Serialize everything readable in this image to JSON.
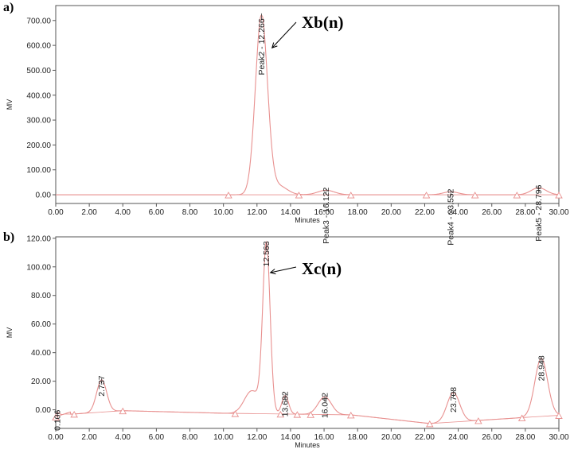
{
  "chart_data": [
    {
      "type": "line",
      "panel_label": "a)",
      "callout": "Xb(n)",
      "callout_target_x": 12.9,
      "callout_target_y": 590,
      "xlabel": "Minutes",
      "ylabel": "MV",
      "xlim": [
        0,
        30
      ],
      "ylim": [
        -35,
        760
      ],
      "x_ticks": [
        "0.00",
        "2.00",
        "4.00",
        "6.00",
        "8.00",
        "10.00",
        "12.00",
        "14.00",
        "16.00",
        "18.00",
        "20.00",
        "22.00",
        "24.00",
        "26.00",
        "28.00",
        "30.00"
      ],
      "y_ticks": [
        "0.00",
        "100.00",
        "200.00",
        "300.00",
        "400.00",
        "500.00",
        "600.00",
        "700.00"
      ],
      "grid": false,
      "peaks": [
        {
          "label": "Peak2 - 12.266",
          "x": 12.266,
          "y": 722,
          "label_y": 708,
          "width": 0.36
        },
        {
          "label": "Peak3 - 16.122",
          "x": 16.122,
          "y": 18,
          "label_y": 30,
          "width": 0.5
        },
        {
          "label": "Peak4 - 23.552",
          "x": 23.552,
          "y": 12,
          "label_y": 24,
          "width": 0.45
        },
        {
          "label": "Peak5 - 28.796",
          "x": 28.796,
          "y": 28,
          "label_y": 40,
          "width": 0.45
        }
      ],
      "markers": [
        10.3,
        14.5,
        17.6,
        22.1,
        25.0,
        27.5,
        30.0
      ]
    },
    {
      "type": "line",
      "panel_label": "b)",
      "callout": "Xc(n)",
      "callout_target_x": 12.8,
      "callout_target_y": 96,
      "xlabel": "Minutes",
      "ylabel": "MV",
      "xlim": [
        0,
        30
      ],
      "ylim": [
        -13,
        121
      ],
      "x_ticks": [
        "0.00",
        "2.00",
        "4.00",
        "6.00",
        "8.00",
        "10.00",
        "12.00",
        "14.00",
        "16.00",
        "18.00",
        "20.00",
        "22.00",
        "24.00",
        "26.00",
        "28.00",
        "30.00"
      ],
      "y_ticks": [
        "0.00",
        "20.00",
        "40.00",
        "60.00",
        "80.00",
        "100.00",
        "120.00"
      ],
      "grid": false,
      "peaks": [
        {
          "label": "0.106",
          "x": 0.106,
          "y": -2,
          "label_y": 0,
          "width": 0.12
        },
        {
          "label": "2.737",
          "x": 2.737,
          "y": 21,
          "label_y": 24,
          "width": 0.3
        },
        {
          "label": "12.563",
          "x": 12.563,
          "y": 115,
          "label_y": 118,
          "width": 0.22
        },
        {
          "label": "13.682",
          "x": 13.682,
          "y": 10,
          "label_y": 13,
          "width": 0.2
        },
        {
          "label": "16.042",
          "x": 16.042,
          "y": 9,
          "label_y": 12,
          "width": 0.4
        },
        {
          "label": "23.708",
          "x": 23.708,
          "y": 12,
          "label_y": 16,
          "width": 0.38
        },
        {
          "label": "28.948",
          "x": 28.948,
          "y": 36,
          "label_y": 38,
          "width": 0.38
        }
      ],
      "markers": [
        0.0,
        1.1,
        4.0,
        10.7,
        13.4,
        14.4,
        15.2,
        17.6,
        22.3,
        25.2,
        27.8,
        30.0
      ]
    }
  ]
}
